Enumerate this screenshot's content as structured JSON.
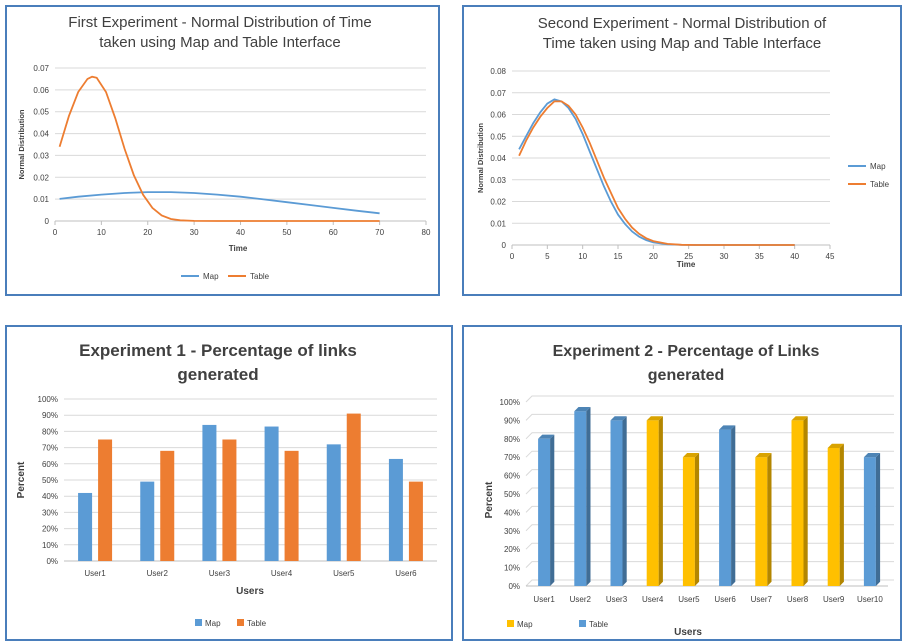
{
  "chart_data": [
    {
      "type": "line",
      "title": "First Experiment - Normal Distribution of Time taken using Map and Table Interface",
      "title_lines": [
        "First Experiment - Normal Distribution of Time",
        "taken using Map and Table Interface"
      ],
      "xlabel": "Time",
      "ylabel": "Normal Distribution",
      "xlim": [
        0,
        80
      ],
      "ylim": [
        0,
        0.07
      ],
      "xticks": [
        "0",
        "10",
        "20",
        "30",
        "40",
        "50",
        "60",
        "70",
        "80"
      ],
      "yticks": [
        "0",
        "0.01",
        "0.02",
        "0.03",
        "0.04",
        "0.05",
        "0.06",
        "0.07"
      ],
      "grid": true,
      "legend": "bottom",
      "series": [
        {
          "name": "Map",
          "color": "#5b9bd5",
          "x": [
            1,
            5,
            10,
            15,
            20,
            25,
            30,
            35,
            40,
            45,
            50,
            55,
            60,
            65,
            70
          ],
          "y": [
            0.0101,
            0.0111,
            0.0121,
            0.0128,
            0.0132,
            0.0132,
            0.0128,
            0.0121,
            0.0111,
            0.0099,
            0.0086,
            0.0073,
            0.006,
            0.0047,
            0.0035
          ]
        },
        {
          "name": "Table",
          "color": "#ed7d31",
          "x": [
            1,
            3,
            5,
            7,
            8,
            9,
            11,
            13,
            15,
            17,
            19,
            21,
            23,
            25,
            27,
            30,
            35,
            40,
            50,
            60,
            70
          ],
          "y": [
            0.034,
            0.048,
            0.059,
            0.065,
            0.066,
            0.0655,
            0.059,
            0.047,
            0.033,
            0.021,
            0.012,
            0.006,
            0.0025,
            0.0009,
            0.0003,
            5e-05,
            0,
            0,
            0,
            0,
            0
          ]
        }
      ]
    },
    {
      "type": "line",
      "title": "Second Experiment - Normal Distribution of Time taken using Map and Table Interface",
      "title_lines": [
        "Second Experiment - Normal Distribution of",
        "Time taken using Map and Table Interface"
      ],
      "xlabel": "Time",
      "ylabel": "Normal Distribution",
      "xlim": [
        0,
        45
      ],
      "ylim": [
        0,
        0.08
      ],
      "xticks": [
        "0",
        "5",
        "10",
        "15",
        "20",
        "25",
        "30",
        "35",
        "40",
        "45"
      ],
      "yticks": [
        "0",
        "0.01",
        "0.02",
        "0.03",
        "0.04",
        "0.05",
        "0.06",
        "0.07",
        "0.08"
      ],
      "grid": true,
      "legend": "right",
      "series": [
        {
          "name": "Map",
          "color": "#5b9bd5",
          "x": [
            1,
            2,
            3,
            4,
            5,
            6,
            7,
            8,
            9,
            10,
            11,
            12,
            13,
            14,
            15,
            16,
            17,
            18,
            19,
            20,
            22,
            24,
            26,
            28,
            30,
            35,
            40
          ],
          "y": [
            0.044,
            0.05,
            0.056,
            0.061,
            0.065,
            0.067,
            0.066,
            0.063,
            0.058,
            0.051,
            0.043,
            0.035,
            0.027,
            0.02,
            0.014,
            0.0096,
            0.0062,
            0.0038,
            0.0022,
            0.0012,
            0.0003,
            6e-05,
            1e-05,
            0,
            0,
            0,
            0
          ]
        },
        {
          "name": "Table",
          "color": "#ed7d31",
          "x": [
            1,
            2,
            3,
            4,
            5,
            6,
            7,
            8,
            9,
            10,
            11,
            12,
            13,
            14,
            15,
            16,
            17,
            18,
            19,
            20,
            22,
            24,
            26,
            28,
            30,
            35,
            40
          ],
          "y": [
            0.041,
            0.048,
            0.054,
            0.059,
            0.063,
            0.066,
            0.066,
            0.064,
            0.06,
            0.054,
            0.047,
            0.039,
            0.031,
            0.024,
            0.017,
            0.012,
            0.008,
            0.0051,
            0.0031,
            0.0018,
            0.0005,
            0.0001,
            2e-05,
            0,
            0,
            0,
            0
          ]
        }
      ]
    },
    {
      "type": "bar",
      "title": "Experiment 1 - Percentage of links generated",
      "title_lines": [
        "Experiment 1 - Percentage of links",
        "generated"
      ],
      "xlabel": "Users",
      "ylabel": "Percent",
      "ylim": [
        0,
        100
      ],
      "yticks": [
        "0%",
        "10%",
        "20%",
        "30%",
        "40%",
        "50%",
        "60%",
        "70%",
        "80%",
        "90%",
        "100%"
      ],
      "categories": [
        "User1",
        "User2",
        "User3",
        "User4",
        "User5",
        "User6"
      ],
      "grid": true,
      "legend": "bottom",
      "series": [
        {
          "name": "Map",
          "color": "#5b9bd5",
          "values": [
            42,
            49,
            84,
            83,
            72,
            63
          ]
        },
        {
          "name": "Table",
          "color": "#ed7d31",
          "values": [
            75,
            68,
            75,
            68,
            91,
            49
          ]
        }
      ]
    },
    {
      "type": "bar",
      "title": "Experiment 2 - Percentage of Links generated",
      "title_lines": [
        "Experiment 2 - Percentage of Links",
        "generated"
      ],
      "xlabel": "Users",
      "ylabel": "Percent",
      "ylim": [
        0,
        100
      ],
      "yticks": [
        "0%",
        "10%",
        "20%",
        "30%",
        "40%",
        "50%",
        "60%",
        "70%",
        "80%",
        "90%",
        "100%"
      ],
      "categories": [
        "User1",
        "User2",
        "User3",
        "User4",
        "User5",
        "User6",
        "User7",
        "User8",
        "User9",
        "User10"
      ],
      "values": [
        80,
        95,
        90,
        90,
        70,
        85,
        70,
        90,
        75,
        70
      ],
      "value_series": [
        "Table",
        "Table",
        "Table",
        "Map",
        "Map",
        "Table",
        "Map",
        "Map",
        "Map",
        "Table"
      ],
      "grid": true,
      "legend": "bottom-left",
      "series": [
        {
          "name": "Map",
          "color": "#ffc000"
        },
        {
          "name": "Table",
          "color": "#5b9bd5"
        }
      ]
    }
  ]
}
